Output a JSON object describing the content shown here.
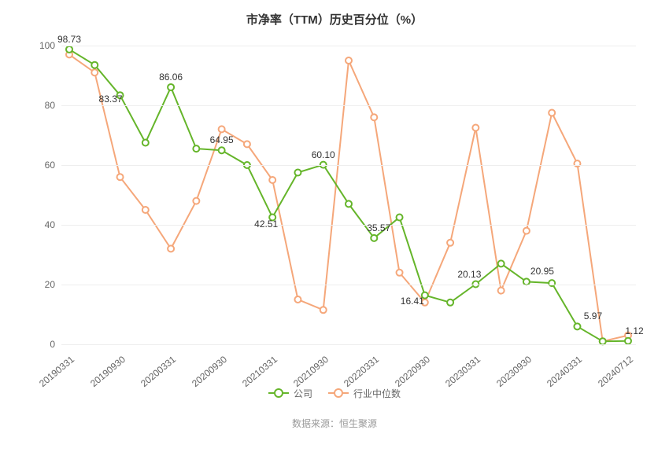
{
  "chart": {
    "title": "市净率（TTM）历史百分位（%）",
    "type": "line",
    "background_color": "#ffffff",
    "grid_color": "#eeeeee",
    "text_color": "#666666",
    "title_fontsize": 15,
    "label_fontsize": 12,
    "line_width": 2,
    "marker_size": 4,
    "ylim": [
      0,
      100
    ],
    "ytick_step": 20,
    "yticks": [
      0,
      20,
      40,
      60,
      80,
      100
    ],
    "x_categories": [
      "20190331",
      "20190630",
      "20190930",
      "20191231",
      "20200331",
      "20200630",
      "20200930",
      "20201231",
      "20210331",
      "20210630",
      "20210930",
      "20211231",
      "20220331",
      "20220630",
      "20220930",
      "20221231",
      "20230331",
      "20230630",
      "20230930",
      "20231231",
      "20240331",
      "20240630",
      "20240712"
    ],
    "x_shown_labels": [
      "20190331",
      "20190930",
      "20200331",
      "20200930",
      "20210331",
      "20210930",
      "20220331",
      "20220930",
      "20230331",
      "20230930",
      "20240331",
      "20240712"
    ],
    "series": [
      {
        "name": "公司",
        "color": "#65b52a",
        "values": [
          98.73,
          93.5,
          83.37,
          67.5,
          86.06,
          65.5,
          64.95,
          60,
          42.51,
          57.5,
          60.1,
          47,
          35.57,
          42.5,
          16.41,
          14,
          20.13,
          27,
          20.95,
          20.5,
          5.97,
          1,
          1.12
        ],
        "point_labels": [
          {
            "i": 0,
            "text": "98.73",
            "dx": 0,
            "dy": 0
          },
          {
            "i": 2,
            "text": "83.37",
            "dx": -12,
            "dy": 18
          },
          {
            "i": 4,
            "text": "86.06",
            "dx": 0,
            "dy": 0
          },
          {
            "i": 6,
            "text": "64.95",
            "dx": 0,
            "dy": 0
          },
          {
            "i": 8,
            "text": "42.51",
            "dx": -8,
            "dy": 22
          },
          {
            "i": 10,
            "text": "60.10",
            "dx": 0,
            "dy": 0
          },
          {
            "i": 12,
            "text": "35.57",
            "dx": 6,
            "dy": 0
          },
          {
            "i": 14,
            "text": "16.41",
            "dx": -16,
            "dy": 20
          },
          {
            "i": 16,
            "text": "20.13",
            "dx": -8,
            "dy": 0
          },
          {
            "i": 18,
            "text": "20.95",
            "dx": 20,
            "dy": 0
          },
          {
            "i": 20,
            "text": "5.97",
            "dx": 20,
            "dy": 0
          },
          {
            "i": 22,
            "text": "1.12",
            "dx": 8,
            "dy": 0
          }
        ]
      },
      {
        "name": "行业中位数",
        "color": "#f5a77a",
        "values": [
          97,
          91,
          56,
          45,
          32,
          48,
          72,
          67,
          55,
          15,
          11.5,
          95,
          76,
          24,
          14,
          34,
          72.5,
          18,
          38,
          77.5,
          60.5,
          1,
          3
        ],
        "point_labels": []
      }
    ],
    "legend": {
      "position": "bottom"
    },
    "source_label": "数据来源：恒生聚源"
  }
}
